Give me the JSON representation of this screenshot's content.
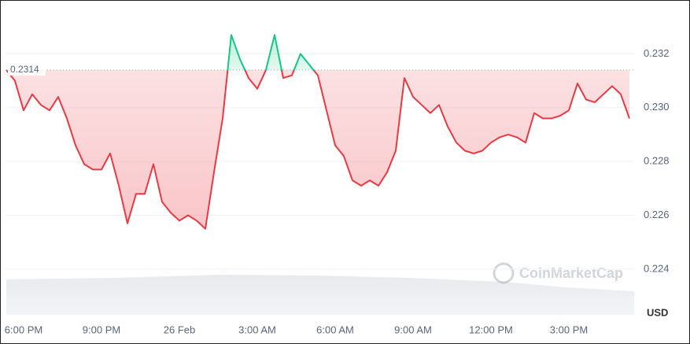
{
  "chart_data": {
    "type": "line",
    "categories": [
      null,
      null,
      "6:00 PM",
      null,
      null,
      null,
      null,
      null,
      null,
      null,
      null,
      "9:00 PM",
      null,
      null,
      null,
      null,
      null,
      null,
      null,
      null,
      "26 Feb",
      null,
      null,
      null,
      null,
      null,
      null,
      null,
      null,
      "3:00 AM",
      null,
      null,
      null,
      null,
      null,
      null,
      null,
      null,
      "6:00 AM",
      null,
      null,
      null,
      null,
      null,
      null,
      null,
      null,
      "9:00 AM",
      null,
      null,
      null,
      null,
      null,
      null,
      null,
      null,
      "12:00 PM",
      null,
      null,
      null,
      null,
      null,
      null,
      null,
      null,
      "3:00 PM",
      null,
      null,
      null,
      null,
      null,
      null,
      null
    ],
    "values": [
      0.2314,
      0.231,
      0.2299,
      0.2305,
      0.2301,
      0.2299,
      0.2304,
      0.2296,
      0.2286,
      0.2279,
      0.2277,
      0.2277,
      0.2283,
      0.2271,
      0.2257,
      0.2268,
      0.2268,
      0.2279,
      0.2265,
      0.2261,
      0.2258,
      0.226,
      0.2258,
      0.2255,
      0.2276,
      0.2296,
      0.2327,
      0.2318,
      0.2311,
      0.2307,
      0.2314,
      0.2327,
      0.2311,
      0.2312,
      0.232,
      0.2316,
      0.2312,
      0.2299,
      0.2286,
      0.2282,
      0.2273,
      0.2271,
      0.2273,
      0.2271,
      0.2276,
      0.2284,
      0.2311,
      0.2304,
      0.2301,
      0.2298,
      0.2301,
      0.2293,
      0.2287,
      0.2284,
      0.2283,
      0.2284,
      0.2287,
      0.2289,
      0.229,
      0.2289,
      0.2287,
      0.2298,
      0.2296,
      0.2296,
      0.2297,
      0.2299,
      0.2309,
      0.2303,
      0.2302,
      0.2305,
      0.2308,
      0.2305,
      0.2296
    ],
    "baseline": 0.2314,
    "up_color": "#16c784",
    "down_color": "#ea3943",
    "ylim": [
      0.2223,
      0.234
    ],
    "yticks": [
      0.232,
      {
        "value": 0.23,
        "label": "0.230"
      },
      0.228,
      0.226,
      0.224
    ],
    "y_axis_label": "USD",
    "watermark": "CoinMarketCap",
    "grid": true
  }
}
